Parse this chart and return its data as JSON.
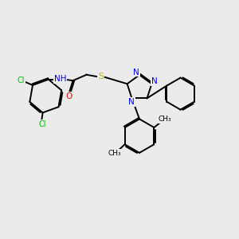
{
  "bg_color": "#ebebeb",
  "bond_color": "#000000",
  "bond_width": 1.4,
  "atom_colors": {
    "Cl": "#00bb00",
    "N": "#0000ee",
    "O": "#ee0000",
    "S": "#ccaa00",
    "H": "#555555",
    "C": "#000000"
  },
  "xlim": [
    0,
    10
  ],
  "ylim": [
    0,
    10
  ]
}
